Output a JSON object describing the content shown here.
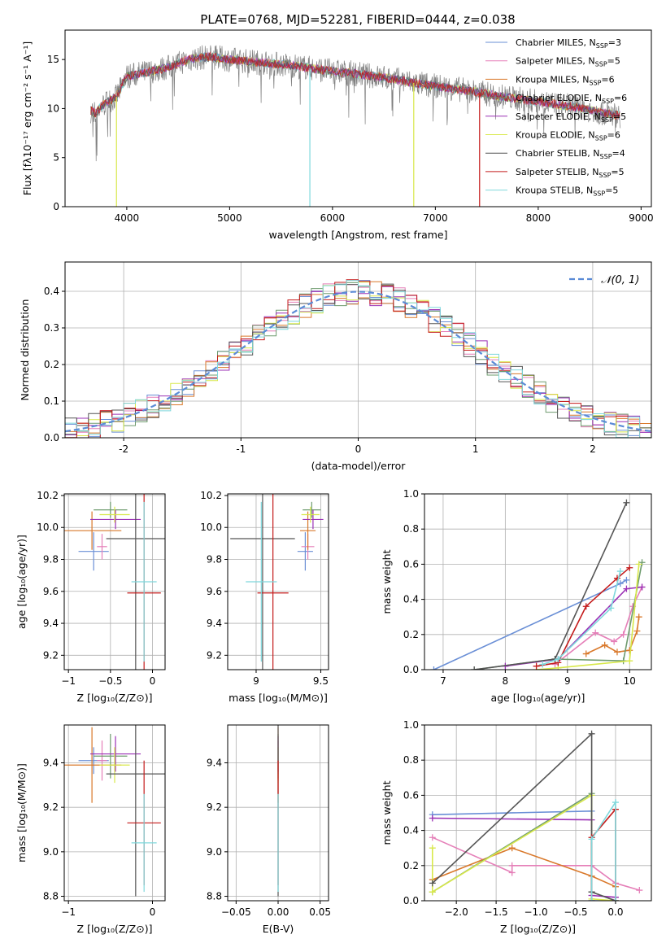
{
  "figure_title": "PLATE=0768, MJD=52281, FIBERID=0444, z=0.038",
  "models": [
    {
      "label": "Chabrier MILES, N",
      "sub": "SSP",
      "tail": "=3",
      "color": "#6a8fd6"
    },
    {
      "label": "Salpeter MILES, N",
      "sub": "SSP",
      "tail": "=5",
      "color": "#e57fb8"
    },
    {
      "label": "Kroupa MILES, N",
      "sub": "SSP",
      "tail": "=6",
      "color": "#d9782a"
    },
    {
      "label": "Chabrier ELODIE, N",
      "sub": "SSP",
      "tail": "=6",
      "color": "#6e9b6e"
    },
    {
      "label": "Salpeter ELODIE, N",
      "sub": "SSP",
      "tail": "=5",
      "color": "#9b30b5"
    },
    {
      "label": "Kroupa ELODIE, N",
      "sub": "SSP",
      "tail": "=6",
      "color": "#d8e84a"
    },
    {
      "label": "Chabrier STELIB, N",
      "sub": "SSP",
      "tail": "=4",
      "color": "#555555"
    },
    {
      "label": "Salpeter STELIB, N",
      "sub": "SSP",
      "tail": "=5",
      "color": "#c41a1a"
    },
    {
      "label": "Kroupa STELIB, N",
      "sub": "SSP",
      "tail": "=5",
      "color": "#7fd8dc"
    }
  ],
  "chart_data": [
    {
      "id": "spectrum",
      "type": "line",
      "ylabel": "Flux [fλ10⁻¹⁷ erg cm⁻² s⁻¹ A⁻¹]",
      "xlabel": "wavelength [Angstrom, rest frame]",
      "xlim": [
        3400,
        9100
      ],
      "ylim": [
        0,
        18
      ],
      "xticks": [
        4000,
        5000,
        6000,
        7000,
        8000,
        9000
      ],
      "yticks": [
        0,
        5,
        10,
        15
      ],
      "continuum": {
        "x": [
          3650,
          3700,
          3750,
          3800,
          3900,
          4000,
          4200,
          4400,
          4600,
          4800,
          5000,
          5200,
          5400,
          5600,
          5800,
          6000,
          6200,
          6400,
          6600,
          6800,
          7000,
          7200,
          7400,
          7600,
          7800,
          8000,
          8200,
          8400,
          8600,
          8800
        ],
        "y": [
          9.8,
          9.5,
          10.2,
          10.6,
          11.2,
          13.3,
          13.7,
          14.2,
          15.0,
          15.3,
          15.0,
          14.8,
          14.6,
          14.4,
          14.1,
          13.8,
          13.6,
          13.3,
          13.0,
          12.6,
          12.3,
          12.0,
          11.7,
          11.3,
          11.0,
          10.7,
          10.4,
          10.1,
          9.6,
          9.3
        ]
      },
      "dropouts": [
        {
          "x": 3900,
          "y": 0,
          "series": "Kroupa ELODIE"
        },
        {
          "x": 5780,
          "y": 0,
          "series": "Kroupa STELIB"
        },
        {
          "x": 6790,
          "y": 0,
          "series": "Kroupa ELODIE"
        },
        {
          "x": 7430,
          "y": 0,
          "series": "Salpeter STELIB"
        }
      ]
    },
    {
      "id": "residual-histogram",
      "type": "step",
      "xlabel": "(data-model)/error",
      "ylabel": "Normed distribution",
      "legend": "𝒩(0, 1)",
      "xlim": [
        -2.5,
        2.5
      ],
      "ylim": [
        0,
        0.48
      ],
      "xticks": [
        -2,
        -1,
        0,
        1,
        2
      ],
      "yticks": [
        0.0,
        0.1,
        0.2,
        0.3,
        0.4
      ],
      "bin_width": 0.1
    },
    {
      "id": "age-vs-Z",
      "type": "errorbar",
      "xlabel": "Z [log₁₀(Z/Z⊙)]",
      "ylabel": "age  [log₁₀(age/yr)]",
      "xlim": [
        -1.05,
        0.15
      ],
      "ylim": [
        9.11,
        10.21
      ],
      "xticks": [
        -1,
        -0.5,
        0
      ],
      "xticklabels": [
        "−1",
        "−0.5",
        "0"
      ],
      "yticks": [
        9.2,
        9.4,
        9.6,
        9.8,
        10.0,
        10.2
      ],
      "points": [
        {
          "series": 0,
          "x": -0.7,
          "xerr": 0.18,
          "y": 9.85,
          "yerr": 0.12
        },
        {
          "series": 1,
          "x": -0.6,
          "xerr": 0.06,
          "y": 9.88,
          "yerr": 0.08
        },
        {
          "series": 2,
          "x": -0.72,
          "xerr": 0.35,
          "y": 9.98,
          "yerr": 0.12
        },
        {
          "series": 3,
          "x": -0.5,
          "xerr": 0.2,
          "y": 10.11,
          "yerr": 0.05
        },
        {
          "series": 4,
          "x": -0.44,
          "xerr": 0.3,
          "y": 10.05,
          "yerr": 0.06
        },
        {
          "series": 5,
          "x": -0.45,
          "xerr": 0.18,
          "y": 10.08,
          "yerr": 0.05
        },
        {
          "series": 6,
          "x": -0.2,
          "xerr": 0.35,
          "y": 9.93,
          "yerr": 0.9
        },
        {
          "series": 7,
          "x": -0.1,
          "xerr": 0.2,
          "y": 9.59,
          "yerr": 0.65
        },
        {
          "series": 8,
          "x": -0.1,
          "xerr": 0.15,
          "y": 9.66,
          "yerr": 0.5
        }
      ]
    },
    {
      "id": "age-vs-mass",
      "type": "errorbar",
      "xlabel": "mass [log₁₀(M/M⊙)]",
      "ylabel": "",
      "xlim": [
        8.78,
        9.56
      ],
      "ylim": [
        9.11,
        10.21
      ],
      "xticks": [
        9.0,
        9.5
      ],
      "yticks": [
        9.2,
        9.4,
        9.6,
        9.8,
        10.0,
        10.2
      ],
      "points": [
        {
          "series": 0,
          "x": 9.38,
          "xerr": 0.06,
          "y": 9.85,
          "yerr": 0.12
        },
        {
          "series": 1,
          "x": 9.4,
          "xerr": 0.05,
          "y": 9.88,
          "yerr": 0.08
        },
        {
          "series": 2,
          "x": 9.4,
          "xerr": 0.06,
          "y": 9.98,
          "yerr": 0.12
        },
        {
          "series": 3,
          "x": 9.43,
          "xerr": 0.07,
          "y": 10.11,
          "yerr": 0.05
        },
        {
          "series": 4,
          "x": 9.44,
          "xerr": 0.08,
          "y": 10.05,
          "yerr": 0.06
        },
        {
          "series": 5,
          "x": 9.42,
          "xerr": 0.07,
          "y": 10.08,
          "yerr": 0.05
        },
        {
          "series": 6,
          "x": 9.05,
          "xerr": 0.25,
          "y": 9.93,
          "yerr": 0.9
        },
        {
          "series": 7,
          "x": 9.13,
          "xerr": 0.12,
          "y": 9.59,
          "yerr": 0.65
        },
        {
          "series": 8,
          "x": 9.04,
          "xerr": 0.12,
          "y": 9.66,
          "yerr": 0.5
        }
      ]
    },
    {
      "id": "mass-weight-vs-age",
      "type": "line",
      "xlabel": "age  [log₁₀(age/yr)]",
      "ylabel": "mass weight",
      "xlim": [
        6.7,
        10.35
      ],
      "ylim": [
        0,
        1
      ],
      "xticks": [
        7,
        8,
        9,
        10
      ],
      "yticks": [
        0.0,
        0.2,
        0.4,
        0.6,
        0.8,
        1.0
      ],
      "series": [
        {
          "series": 0,
          "x": [
            6.85,
            9.85,
            9.95
          ],
          "y": [
            0.0,
            0.49,
            0.51
          ]
        },
        {
          "series": 1,
          "x": [
            8.8,
            9.45,
            9.75,
            9.9,
            10.05,
            10.2
          ],
          "y": [
            0.03,
            0.21,
            0.16,
            0.2,
            0.36,
            0.47
          ]
        },
        {
          "series": 2,
          "x": [
            9.3,
            9.6,
            9.8,
            10.0,
            10.12,
            10.15
          ],
          "y": [
            0.09,
            0.14,
            0.1,
            0.11,
            0.22,
            0.3
          ]
        },
        {
          "series": 3,
          "x": [
            7.5,
            8.8,
            9.9,
            10.2
          ],
          "y": [
            0.0,
            0.06,
            0.05,
            0.61
          ]
        },
        {
          "series": 4,
          "x": [
            8.0,
            8.85,
            9.95,
            10.2
          ],
          "y": [
            0.02,
            0.06,
            0.46,
            0.47
          ]
        },
        {
          "series": 5,
          "x": [
            8.5,
            8.85,
            10.0,
            10.15
          ],
          "y": [
            0.0,
            0.01,
            0.05,
            0.6
          ]
        },
        {
          "series": 6,
          "x": [
            7.5,
            8.8,
            9.95
          ],
          "y": [
            0.0,
            0.06,
            0.95
          ]
        },
        {
          "series": 7,
          "x": [
            8.5,
            8.85,
            9.3,
            9.8,
            10.0
          ],
          "y": [
            0.02,
            0.04,
            0.36,
            0.52,
            0.58
          ]
        },
        {
          "series": 8,
          "x": [
            8.6,
            8.85,
            9.7,
            9.85
          ],
          "y": [
            0.03,
            0.06,
            0.35,
            0.56
          ]
        }
      ]
    },
    {
      "id": "mass-vs-Z",
      "type": "errorbar",
      "xlabel": "Z [log₁₀(Z/Z⊙)]",
      "ylabel": "mass [log₁₀(M/M⊙)]",
      "xlim": [
        -1.05,
        0.15
      ],
      "ylim": [
        8.78,
        9.57
      ],
      "xticks": [
        -1,
        0
      ],
      "xticklabels": [
        "−1",
        "0"
      ],
      "yticks": [
        8.8,
        9.0,
        9.2,
        9.4
      ],
      "points": [
        {
          "series": 0,
          "x": -0.7,
          "xerr": 0.18,
          "y": 9.41,
          "yerr": 0.06
        },
        {
          "series": 1,
          "x": -0.6,
          "xerr": 0.06,
          "y": 9.41,
          "yerr": 0.09
        },
        {
          "series": 2,
          "x": -0.72,
          "xerr": 0.35,
          "y": 9.39,
          "yerr": 0.17
        },
        {
          "series": 3,
          "x": -0.5,
          "xerr": 0.2,
          "y": 9.43,
          "yerr": 0.1
        },
        {
          "series": 4,
          "x": -0.44,
          "xerr": 0.3,
          "y": 9.44,
          "yerr": 0.08
        },
        {
          "series": 5,
          "x": -0.45,
          "xerr": 0.18,
          "y": 9.39,
          "yerr": 0.08
        },
        {
          "series": 6,
          "x": -0.2,
          "xerr": 0.35,
          "y": 9.35,
          "yerr": 0.55
        },
        {
          "series": 7,
          "x": -0.1,
          "xerr": 0.2,
          "y": 9.13,
          "yerr": 0.28
        },
        {
          "series": 8,
          "x": -0.1,
          "xerr": 0.15,
          "y": 9.04,
          "yerr": 0.22
        }
      ]
    },
    {
      "id": "mass-vs-EBV",
      "type": "errorbar",
      "xlabel": "E(B-V)",
      "ylabel": "",
      "xlim": [
        -0.06,
        0.06
      ],
      "ylim": [
        8.78,
        9.57
      ],
      "xticks": [
        -0.05,
        0.0,
        0.05
      ],
      "xticklabels": [
        "−0.05",
        "0.00",
        "0.05"
      ],
      "yticks": [
        8.8,
        9.0,
        9.2,
        9.4
      ],
      "points": [
        {
          "series": 0,
          "x": 0.0,
          "xerr": 0,
          "y": 9.41,
          "yerr": 0.06
        },
        {
          "series": 1,
          "x": 0.0,
          "xerr": 0,
          "y": 9.41,
          "yerr": 0.09
        },
        {
          "series": 2,
          "x": 0.0,
          "xerr": 0,
          "y": 9.39,
          "yerr": 0.17
        },
        {
          "series": 3,
          "x": 0.0,
          "xerr": 0,
          "y": 9.43,
          "yerr": 0.1
        },
        {
          "series": 4,
          "x": 0.0,
          "xerr": 0,
          "y": 9.44,
          "yerr": 0.08
        },
        {
          "series": 5,
          "x": 0.0,
          "xerr": 0,
          "y": 9.39,
          "yerr": 0.08
        },
        {
          "series": 6,
          "x": 0.0,
          "xerr": 0,
          "y": 9.35,
          "yerr": 0.55
        },
        {
          "series": 7,
          "x": 0.0,
          "xerr": 0,
          "y": 9.13,
          "yerr": 0.28
        },
        {
          "series": 8,
          "x": 0.0,
          "xerr": 0,
          "y": 9.04,
          "yerr": 0.22
        }
      ]
    },
    {
      "id": "mass-weight-vs-Z",
      "type": "line",
      "xlabel": "Z [log₁₀(Z/Z⊙)]",
      "ylabel": "mass weight",
      "xlim": [
        -2.4,
        0.45
      ],
      "ylim": [
        0,
        1
      ],
      "xticks": [
        -2.0,
        -1.5,
        -1.0,
        -0.5,
        0.0
      ],
      "xticklabels": [
        "−2.0",
        "−1.5",
        "−1.0",
        "−0.5",
        "0.0"
      ],
      "yticks": [
        0.0,
        0.2,
        0.4,
        0.6,
        0.8,
        1.0
      ],
      "series": [
        {
          "series": 0,
          "x": [
            -2.3,
            -0.3,
            -0.3,
            0.0
          ],
          "y": [
            0.49,
            0.51,
            0.0,
            0.0
          ]
        },
        {
          "series": 1,
          "x": [
            -2.3,
            -1.3,
            -1.3,
            -0.3,
            0.0,
            0.3
          ],
          "y": [
            0.36,
            0.16,
            0.2,
            0.2,
            0.1,
            0.06
          ]
        },
        {
          "series": 2,
          "x": [
            -2.3,
            -1.3,
            -0.3,
            0.0
          ],
          "y": [
            0.12,
            0.3,
            0.14,
            0.08
          ]
        },
        {
          "series": 3,
          "x": [
            -2.3,
            -0.3,
            -0.3,
            0.0
          ],
          "y": [
            0.05,
            0.61,
            0.05,
            0.0
          ]
        },
        {
          "series": 4,
          "x": [
            -2.3,
            -0.3,
            -0.3,
            0.0
          ],
          "y": [
            0.47,
            0.46,
            0.03,
            0.02
          ]
        },
        {
          "series": 5,
          "x": [
            -2.3,
            -2.3,
            -0.3,
            -0.3,
            0.0
          ],
          "y": [
            0.3,
            0.05,
            0.6,
            0.01,
            0.0
          ]
        },
        {
          "series": 6,
          "x": [
            -2.3,
            -0.3,
            -0.3,
            0.0
          ],
          "y": [
            0.1,
            0.95,
            0.05,
            0.0
          ]
        },
        {
          "series": 7,
          "x": [
            -0.3,
            -0.3,
            0.0,
            0.0
          ],
          "y": [
            0.0,
            0.36,
            0.52,
            0.0
          ]
        },
        {
          "series": 8,
          "x": [
            -0.3,
            -0.3,
            0.0,
            0.0
          ],
          "y": [
            0.0,
            0.35,
            0.56,
            0.0
          ]
        }
      ]
    }
  ]
}
